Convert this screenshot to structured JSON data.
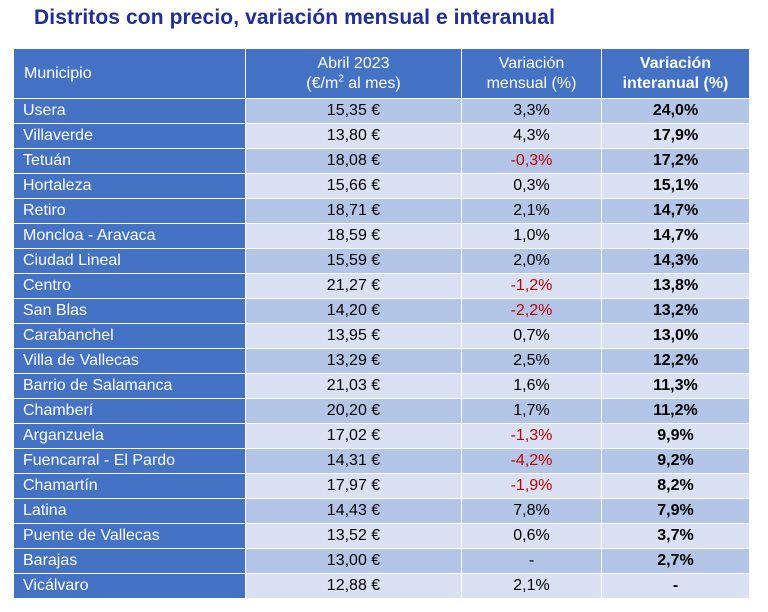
{
  "title": "Distritos con precio, variación mensual e interanual",
  "colors": {
    "header": "#4472c4",
    "row_odd": "#b4c6e7",
    "row_even": "#d9e1f2",
    "negative": "#c00000",
    "title": "#1f2e99"
  },
  "chart_data": {
    "type": "table",
    "title": "Distritos con precio, variación mensual e interanual",
    "columns": {
      "municipio": "Municipio",
      "precio_line1": "Abril 2023",
      "precio_line2_pre": "(€/m",
      "precio_line2_sup": "2",
      "precio_line2_post": " al mes)",
      "mensual_line1": "Variación",
      "mensual_line2": "mensual (%)",
      "interanual_line1": "Variación",
      "interanual_line2": "interanual (%)"
    },
    "rows": [
      {
        "municipio": "Usera",
        "precio": "15,35 €",
        "mensual": "3,3%",
        "interanual": "24,0%"
      },
      {
        "municipio": "Villaverde",
        "precio": "13,80 €",
        "mensual": "4,3%",
        "interanual": "17,9%"
      },
      {
        "municipio": "Tetuán",
        "precio": "18,08 €",
        "mensual": "-0,3%",
        "interanual": "17,2%"
      },
      {
        "municipio": "Hortaleza",
        "precio": "15,66 €",
        "mensual": "0,3%",
        "interanual": "15,1%"
      },
      {
        "municipio": "Retiro",
        "precio": "18,71 €",
        "mensual": "2,1%",
        "interanual": "14,7%"
      },
      {
        "municipio": "Moncloa - Aravaca",
        "precio": "18,59 €",
        "mensual": "1,0%",
        "interanual": "14,7%"
      },
      {
        "municipio": "Ciudad Lineal",
        "precio": "15,59 €",
        "mensual": "2,0%",
        "interanual": "14,3%"
      },
      {
        "municipio": "Centro",
        "precio": "21,27 €",
        "mensual": "-1,2%",
        "interanual": "13,8%"
      },
      {
        "municipio": "San Blas",
        "precio": "14,20 €",
        "mensual": "-2,2%",
        "interanual": "13,2%"
      },
      {
        "municipio": "Carabanchel",
        "precio": "13,95 €",
        "mensual": "0,7%",
        "interanual": "13,0%"
      },
      {
        "municipio": "Villa de Vallecas",
        "precio": "13,29 €",
        "mensual": "2,5%",
        "interanual": "12,2%"
      },
      {
        "municipio": "Barrio de Salamanca",
        "precio": "21,03 €",
        "mensual": "1,6%",
        "interanual": "11,3%"
      },
      {
        "municipio": "Chamberí",
        "precio": "20,20 €",
        "mensual": "1,7%",
        "interanual": "11,2%"
      },
      {
        "municipio": "Arganzuela",
        "precio": "17,02 €",
        "mensual": "-1,3%",
        "interanual": "9,9%"
      },
      {
        "municipio": "Fuencarral - El Pardo",
        "precio": "14,31 €",
        "mensual": "-4,2%",
        "interanual": "9,2%"
      },
      {
        "municipio": "Chamartín",
        "precio": "17,97 €",
        "mensual": "-1,9%",
        "interanual": "8,2%"
      },
      {
        "municipio": "Latina",
        "precio": "14,43 €",
        "mensual": "7,8%",
        "interanual": "7,9%"
      },
      {
        "municipio": "Puente de Vallecas",
        "precio": "13,52 €",
        "mensual": "0,6%",
        "interanual": "3,7%"
      },
      {
        "municipio": "Barajas",
        "precio": "13,00 €",
        "mensual": "-",
        "interanual": "2,7%"
      },
      {
        "municipio": "Vicálvaro",
        "precio": "12,88 €",
        "mensual": "2,1%",
        "interanual": "-"
      }
    ]
  }
}
